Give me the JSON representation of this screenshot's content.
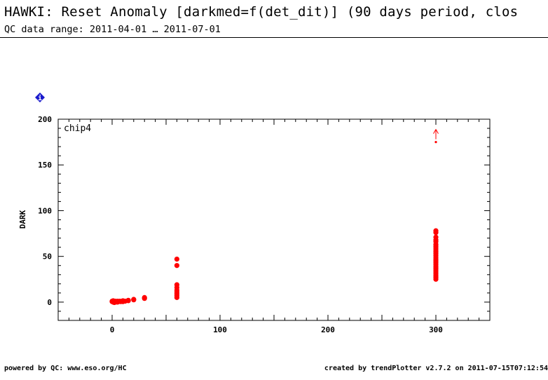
{
  "header": {
    "title": "HAWKI: Reset Anomaly [darkmed=f(det_dit)] (90 days period, clos",
    "subtitle": "QC data range: 2011-04-01 … 2011-07-01"
  },
  "info_badge": {
    "label": "i",
    "color": "#1a1acc",
    "icon": "info-diamond-icon"
  },
  "footer": {
    "left": "powered by QC: www.eso.org/HC",
    "right": "created by trendPlotter v2.7.2 on 2011-07-15T07:12:54"
  },
  "chart_data": {
    "type": "scatter",
    "panel_label": "chip4",
    "ylabel": "DARK",
    "xlabel": "",
    "xlim": [
      -50,
      350
    ],
    "ylim": [
      -20,
      200
    ],
    "xticks": [
      0,
      100,
      200,
      300
    ],
    "yticks": [
      0,
      50,
      100,
      150,
      200
    ],
    "color": "#ff0000",
    "series": [
      {
        "points": [
          [
            0,
            0.5
          ],
          [
            0,
            1
          ],
          [
            1,
            0
          ],
          [
            1,
            1.5
          ],
          [
            2,
            0.5
          ],
          [
            2,
            -0.5
          ],
          [
            3,
            1
          ],
          [
            3,
            0
          ],
          [
            4,
            0.5
          ],
          [
            5,
            0
          ],
          [
            5,
            1
          ],
          [
            6,
            0.5
          ],
          [
            7,
            1
          ],
          [
            8,
            0.5
          ],
          [
            9,
            1
          ],
          [
            10,
            1.5
          ],
          [
            10,
            0.5
          ],
          [
            12,
            1
          ],
          [
            15,
            1.5
          ],
          [
            15,
            2
          ],
          [
            20,
            2.5
          ],
          [
            20,
            3
          ],
          [
            30,
            4
          ],
          [
            30,
            5
          ],
          [
            60,
            47
          ],
          [
            60,
            40
          ],
          [
            60,
            19
          ],
          [
            60,
            16
          ],
          [
            60,
            13
          ],
          [
            60,
            11
          ],
          [
            60,
            9
          ],
          [
            60,
            7
          ],
          [
            60,
            5
          ],
          [
            300,
            78
          ],
          [
            300,
            76
          ],
          [
            300,
            71
          ],
          [
            300,
            68
          ],
          [
            300,
            66
          ],
          [
            300,
            63
          ],
          [
            300,
            61
          ],
          [
            300,
            59
          ],
          [
            300,
            57
          ],
          [
            300,
            55
          ],
          [
            300,
            53
          ],
          [
            300,
            51
          ],
          [
            300,
            49
          ],
          [
            300,
            47
          ],
          [
            300,
            45
          ],
          [
            300,
            43
          ],
          [
            300,
            41
          ],
          [
            300,
            39
          ],
          [
            300,
            37
          ],
          [
            300,
            35
          ],
          [
            300,
            33
          ],
          [
            300,
            31
          ],
          [
            300,
            29
          ],
          [
            300,
            27
          ],
          [
            300,
            25
          ]
        ]
      }
    ],
    "outlier_arrow": {
      "x": 300,
      "y": 175,
      "direction": "up"
    }
  }
}
